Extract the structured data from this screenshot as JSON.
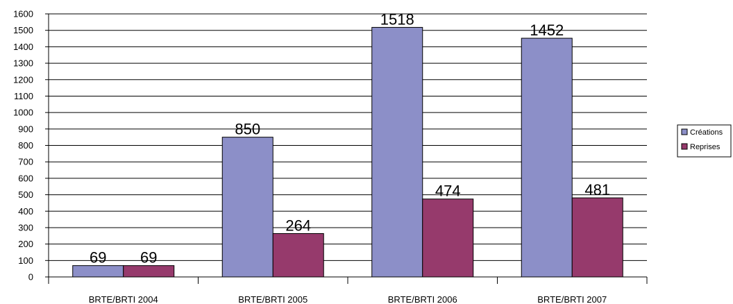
{
  "chart_data": {
    "type": "bar",
    "categories": [
      "BRTE/BRTI 2004",
      "BRTE/BRTI 2005",
      "BRTE/BRTI 2006",
      "BRTE/BRTI 2007"
    ],
    "series": [
      {
        "name": "Créations",
        "values": [
          69,
          850,
          1518,
          1452
        ],
        "color": "#8c8fc8"
      },
      {
        "name": "Reprises",
        "values": [
          69,
          264,
          474,
          481
        ],
        "color": "#963a6c"
      }
    ],
    "ylim": [
      0,
      1600
    ],
    "yticks": [
      0,
      100,
      200,
      300,
      400,
      500,
      600,
      700,
      800,
      900,
      1000,
      1100,
      1200,
      1300,
      1400,
      1500,
      1600
    ],
    "grid": true,
    "legend": "right",
    "data_labels": true
  }
}
